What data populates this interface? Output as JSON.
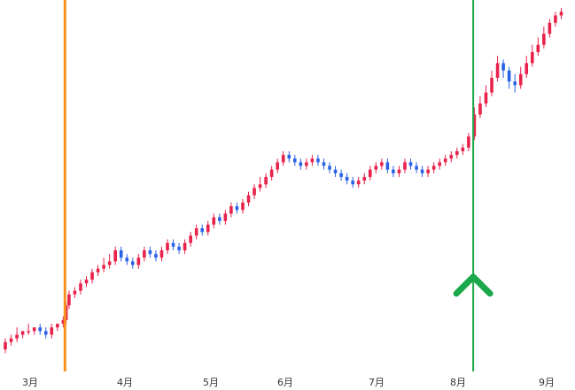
{
  "chart_data": {
    "type": "candlestick",
    "title": "",
    "xlabel": "",
    "ylabel": "",
    "colors": {
      "up": "#e8224a",
      "down": "#2a62e6",
      "orange_marker": "#f5921e",
      "green_marker": "#1aa84a",
      "background": "#ffffff"
    },
    "x_tick_labels": [
      "3月",
      "4月",
      "5月",
      "6月",
      "7月",
      "8月",
      "9月"
    ],
    "ylim": [
      0,
      100
    ],
    "vertical_markers": [
      {
        "color": "orange",
        "x": 10.3
      },
      {
        "color": "green",
        "x": 80.8,
        "arrow": "up"
      }
    ],
    "candles": [
      [
        0,
        6,
        8,
        5,
        9
      ],
      [
        1,
        8,
        9,
        7,
        10
      ],
      [
        2,
        9,
        10,
        8,
        12
      ],
      [
        3,
        10,
        11,
        9,
        11
      ],
      [
        4,
        11,
        11,
        10,
        13
      ],
      [
        5,
        11,
        12,
        10,
        12
      ],
      [
        6,
        12,
        11,
        10,
        13
      ],
      [
        7,
        11,
        10,
        9,
        12
      ],
      [
        8,
        10,
        12,
        9,
        13
      ],
      [
        9,
        12,
        13,
        11,
        13
      ],
      [
        10,
        13,
        14,
        12,
        15
      ],
      [
        10.5,
        14,
        18,
        13,
        19
      ],
      [
        11,
        18,
        21,
        17,
        22
      ],
      [
        12,
        21,
        22,
        20,
        23
      ],
      [
        13,
        22,
        24,
        21,
        25
      ],
      [
        14,
        24,
        25,
        23,
        26
      ],
      [
        15,
        25,
        27,
        24,
        28
      ],
      [
        16,
        27,
        28,
        26,
        29
      ],
      [
        17,
        28,
        29,
        27,
        31
      ],
      [
        18,
        29,
        30,
        28,
        32
      ],
      [
        19,
        30,
        33,
        29,
        34
      ],
      [
        20,
        33,
        31,
        30,
        34
      ],
      [
        21,
        31,
        30,
        29,
        32
      ],
      [
        22,
        30,
        29,
        28,
        31
      ],
      [
        23,
        29,
        31,
        28,
        32
      ],
      [
        24,
        31,
        33,
        30,
        34
      ],
      [
        25,
        33,
        32,
        31,
        34
      ],
      [
        26,
        32,
        31,
        30,
        33
      ],
      [
        27,
        31,
        33,
        30,
        34
      ],
      [
        28,
        33,
        35,
        32,
        36
      ],
      [
        29,
        35,
        34,
        33,
        36
      ],
      [
        30,
        34,
        33,
        32,
        35
      ],
      [
        31,
        33,
        35,
        32,
        36
      ],
      [
        32,
        35,
        37,
        34,
        38
      ],
      [
        33,
        37,
        39,
        36,
        40
      ],
      [
        34,
        39,
        38,
        37,
        40
      ],
      [
        35,
        38,
        40,
        37,
        41
      ],
      [
        36,
        40,
        42,
        39,
        43
      ],
      [
        37,
        42,
        41,
        40,
        43
      ],
      [
        38,
        41,
        43,
        40,
        44
      ],
      [
        39,
        43,
        45,
        42,
        46
      ],
      [
        40,
        45,
        44,
        43,
        46
      ],
      [
        41,
        44,
        46,
        43,
        47
      ],
      [
        42,
        46,
        48,
        45,
        49
      ],
      [
        43,
        48,
        50,
        47,
        51
      ],
      [
        44,
        50,
        51,
        49,
        53
      ],
      [
        45,
        51,
        53,
        50,
        54
      ],
      [
        46,
        53,
        55,
        52,
        56
      ],
      [
        47,
        55,
        57,
        54,
        58
      ],
      [
        48,
        57,
        59,
        56,
        60
      ],
      [
        49,
        59,
        58,
        57,
        60
      ],
      [
        50,
        58,
        57,
        56,
        59
      ],
      [
        51,
        57,
        56,
        55,
        58
      ],
      [
        52,
        56,
        57,
        55,
        58
      ],
      [
        53,
        57,
        58,
        56,
        59
      ],
      [
        54,
        58,
        57,
        56,
        59
      ],
      [
        55,
        57,
        56,
        55,
        58
      ],
      [
        56,
        56,
        55,
        54,
        57
      ],
      [
        57,
        55,
        54,
        53,
        56
      ],
      [
        58,
        54,
        53,
        52,
        55
      ],
      [
        59,
        53,
        52,
        51,
        54
      ],
      [
        60,
        52,
        51,
        50,
        53
      ],
      [
        61,
        51,
        52,
        50,
        53
      ],
      [
        62,
        52,
        53,
        51,
        54
      ],
      [
        63,
        53,
        55,
        52,
        56
      ],
      [
        64,
        55,
        56,
        54,
        57
      ],
      [
        65,
        56,
        57,
        55,
        58
      ],
      [
        66,
        57,
        55,
        54,
        58
      ],
      [
        67,
        55,
        54,
        53,
        56
      ],
      [
        68,
        54,
        55,
        53,
        56
      ],
      [
        69,
        55,
        57,
        54,
        58
      ],
      [
        70,
        57,
        56,
        55,
        58
      ],
      [
        71,
        56,
        55,
        54,
        57
      ],
      [
        72,
        55,
        54,
        53,
        56
      ],
      [
        73,
        54,
        55,
        53,
        56
      ],
      [
        74,
        55,
        56,
        54,
        57
      ],
      [
        75,
        56,
        57,
        55,
        58
      ],
      [
        76,
        57,
        58,
        56,
        59
      ],
      [
        77,
        58,
        59,
        57,
        60
      ],
      [
        78,
        59,
        60,
        58,
        61
      ],
      [
        79,
        60,
        61,
        59,
        62
      ],
      [
        80,
        61,
        64,
        60,
        65
      ],
      [
        81,
        64,
        70,
        63,
        72
      ],
      [
        82,
        70,
        73,
        69,
        75
      ],
      [
        83,
        73,
        76,
        72,
        78
      ],
      [
        84,
        76,
        80,
        75,
        82
      ],
      [
        85,
        80,
        84,
        79,
        86
      ],
      [
        86,
        84,
        82,
        80,
        85
      ],
      [
        87,
        82,
        79,
        77,
        83
      ],
      [
        88,
        79,
        78,
        76,
        81
      ],
      [
        89,
        78,
        81,
        77,
        83
      ],
      [
        90,
        81,
        84,
        80,
        86
      ],
      [
        91,
        84,
        87,
        83,
        89
      ],
      [
        92,
        87,
        89,
        86,
        91
      ],
      [
        93,
        89,
        92,
        88,
        94
      ],
      [
        94,
        92,
        95,
        91,
        96
      ],
      [
        95,
        95,
        97,
        94,
        98
      ],
      [
        96,
        97,
        98,
        96,
        99
      ]
    ]
  }
}
